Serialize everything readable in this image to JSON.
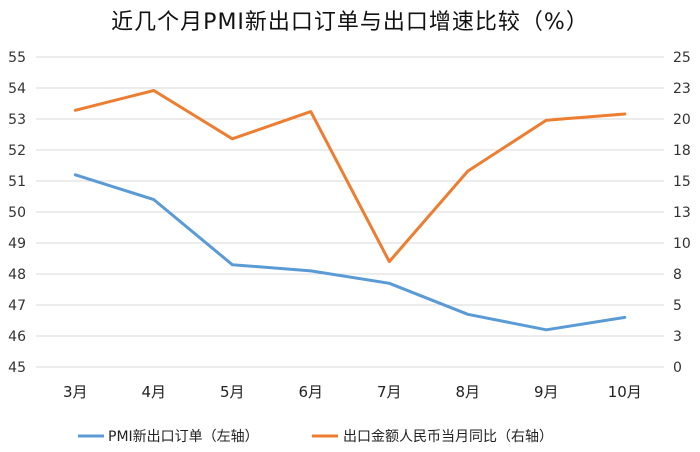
{
  "chart_data": {
    "type": "line",
    "title": "近几个月PMI新出口订单与出口增速比较（%）",
    "categories": [
      "3月",
      "4月",
      "5月",
      "6月",
      "7月",
      "8月",
      "9月",
      "10月"
    ],
    "y_left": {
      "ylim": [
        45,
        55
      ],
      "ticks": [
        "45",
        "46",
        "47",
        "48",
        "49",
        "50",
        "51",
        "52",
        "53",
        "54",
        "55"
      ]
    },
    "y_right": {
      "ylim": [
        0,
        25
      ],
      "ticks": [
        "0",
        "3",
        "5",
        "8",
        "10",
        "13",
        "15",
        "18",
        "20",
        "23",
        "25"
      ]
    },
    "series": [
      {
        "name": "PMI新出口订单（左轴）",
        "axis": "left",
        "color": "#5b9bd5",
        "values": [
          51.2,
          50.4,
          48.3,
          48.1,
          47.7,
          46.7,
          46.2,
          46.6
        ]
      },
      {
        "name": "出口金额人民币当月同比（右轴）",
        "axis": "right",
        "color": "#ed7d31",
        "values": [
          20.7,
          22.3,
          18.4,
          20.6,
          8.5,
          15.8,
          19.9,
          20.4
        ]
      }
    ],
    "grid": true,
    "legend": "bottom"
  }
}
